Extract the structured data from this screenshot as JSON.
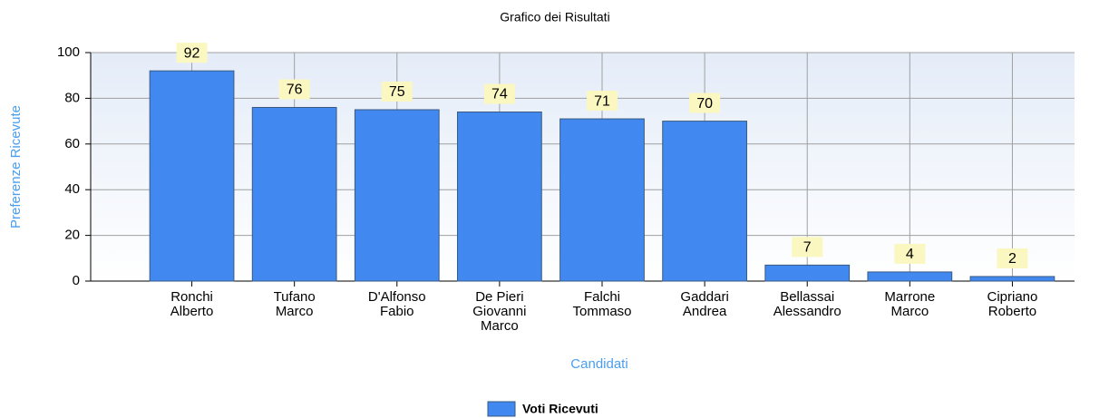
{
  "chart_data": {
    "type": "bar",
    "title": "Grafico dei Risultati",
    "x_label": "Candidati",
    "y_label": "Preferenze Ricevute",
    "categories": [
      "Ronchi Alberto",
      "Tufano Marco",
      "D'Alfonso Fabio",
      "De Pieri Giovanni Marco",
      "Falchi Tommaso",
      "Gaddari Andrea",
      "Bellassai Alessandro",
      "Marrone Marco",
      "Cipriano Roberto"
    ],
    "series": [
      {
        "name": "Voti Ricevuti",
        "color": "#4189f0",
        "values": [
          92,
          76,
          75,
          74,
          71,
          70,
          7,
          4,
          2
        ]
      }
    ],
    "ylim": [
      0,
      100
    ],
    "yticks": [
      0,
      20,
      40,
      60,
      80,
      100
    ],
    "grid": true,
    "legend": "bottom"
  }
}
